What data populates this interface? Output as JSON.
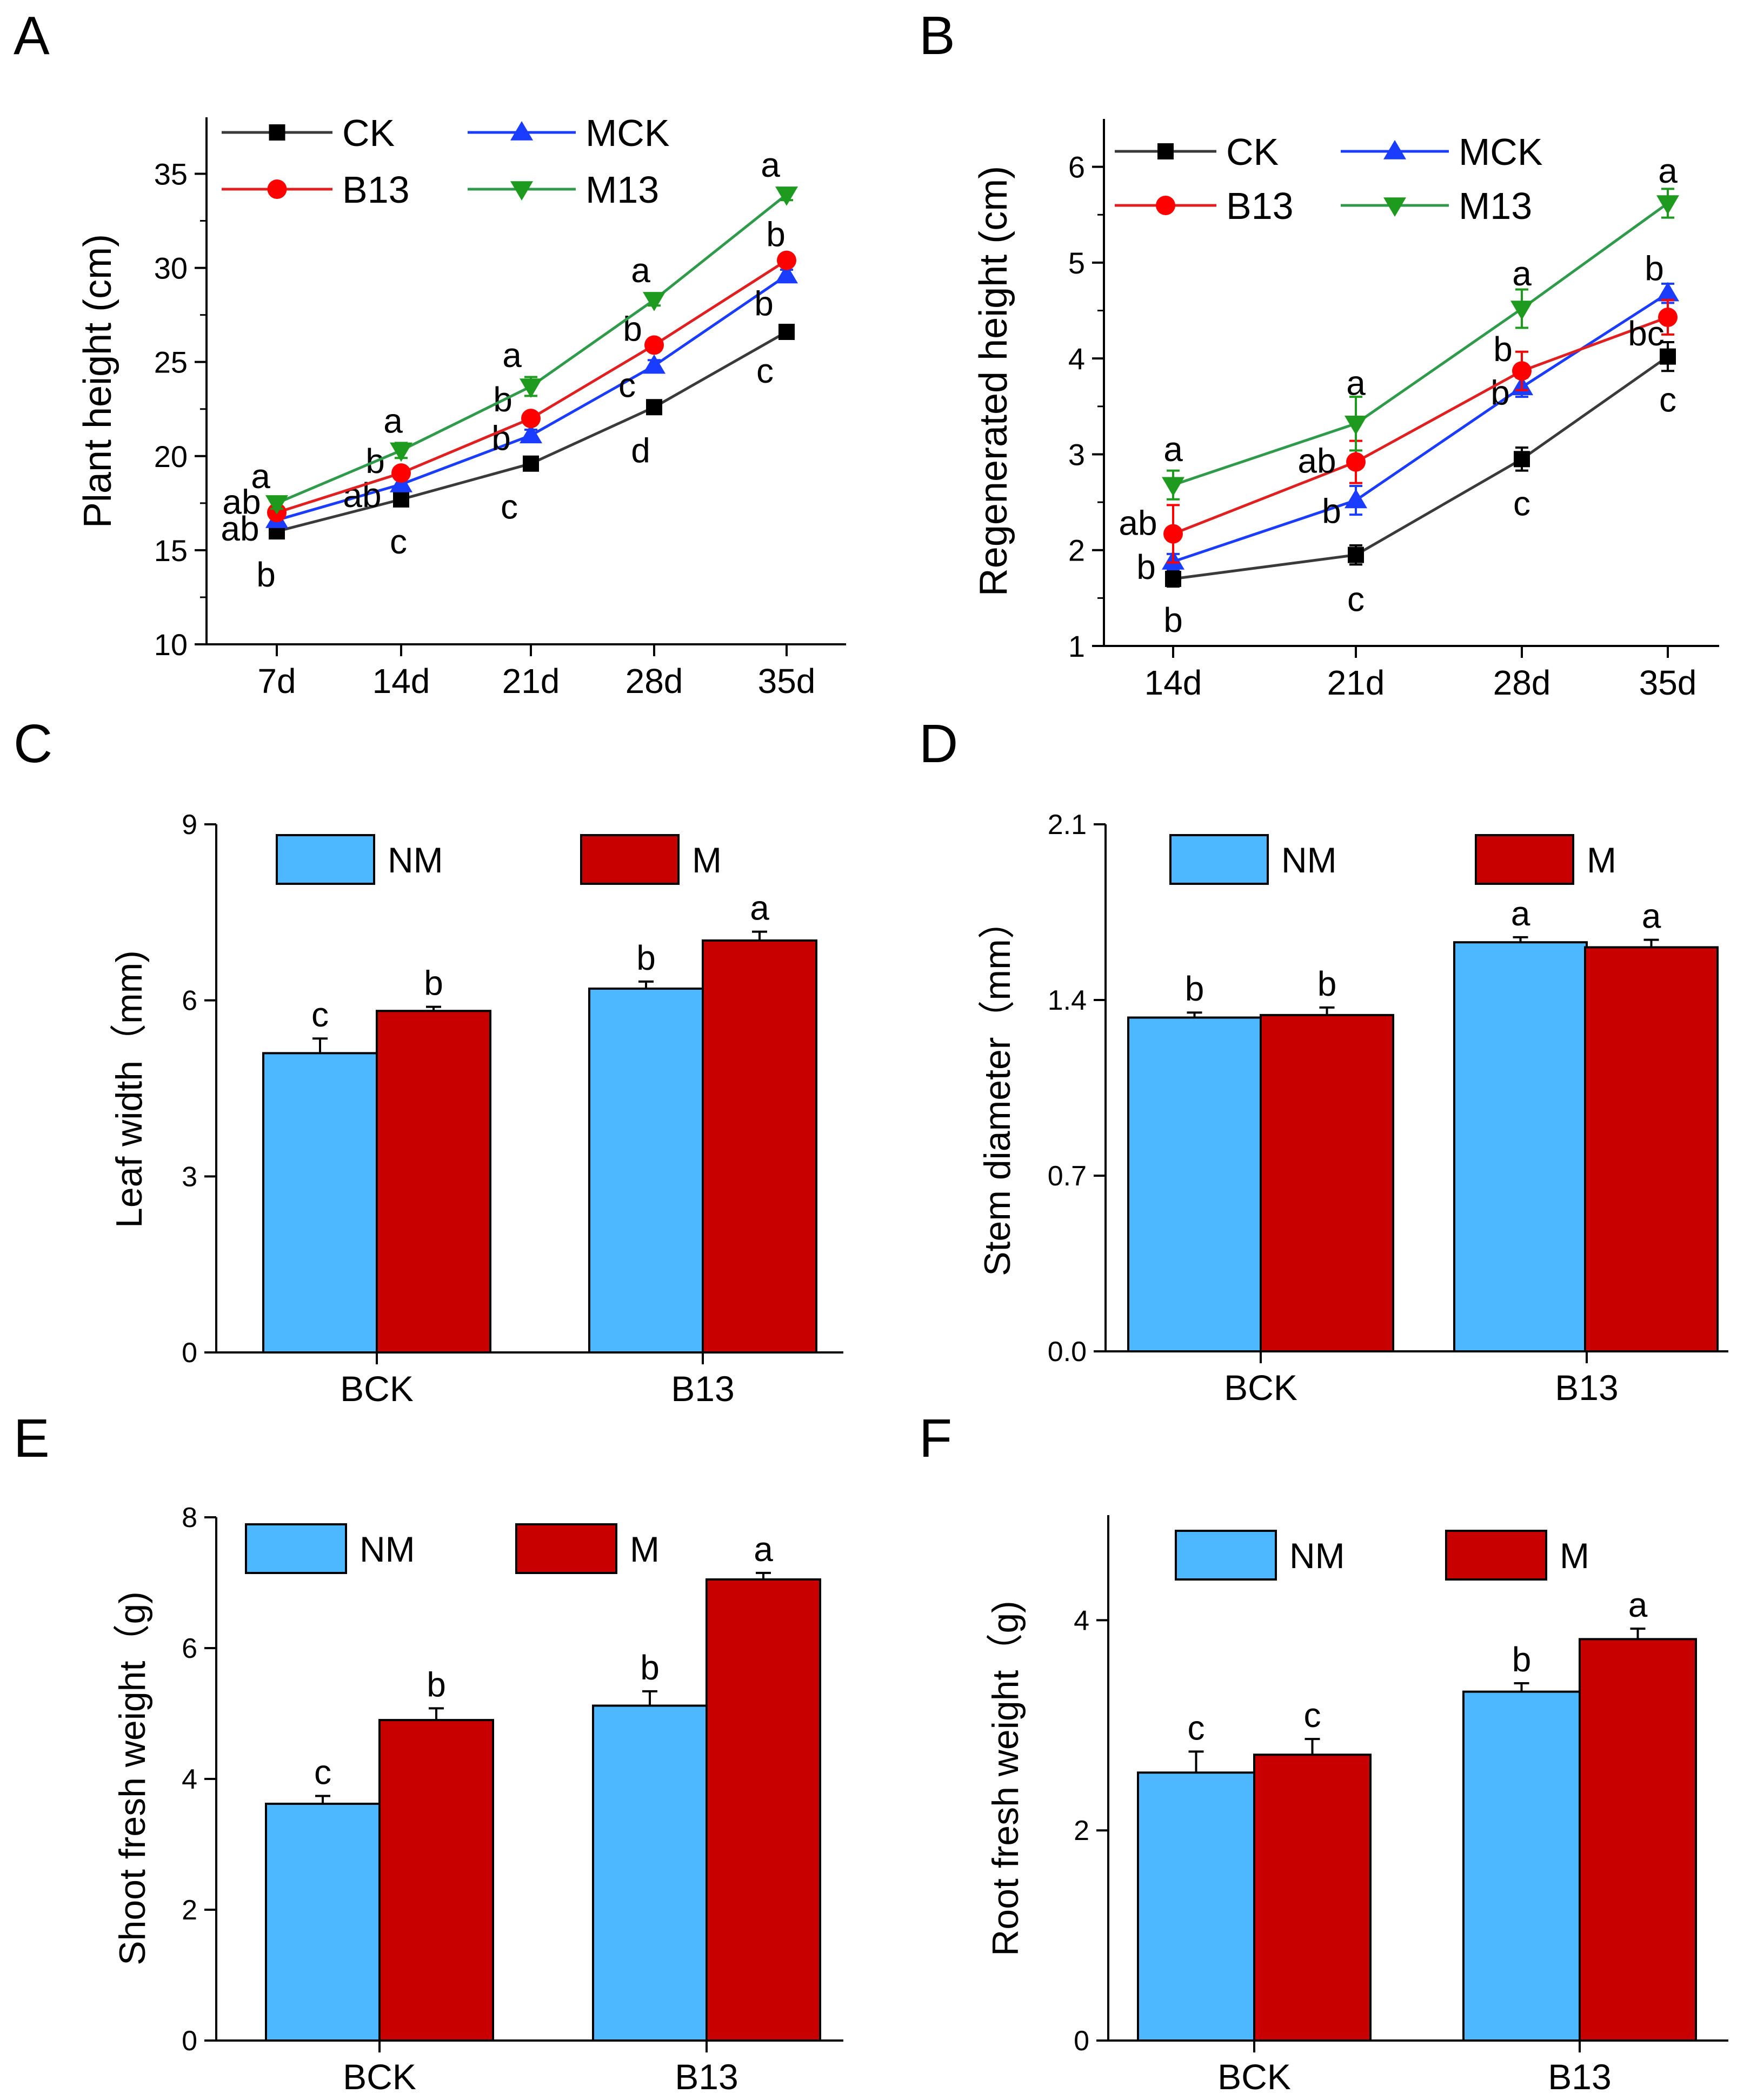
{
  "figure": {
    "panel_labels": [
      "A",
      "B",
      "C",
      "D",
      "E",
      "F"
    ]
  },
  "chart_data": [
    {
      "panel": "A",
      "type": "line",
      "title": "",
      "xlabel": "",
      "ylabel": "Plant height (cm)",
      "categories": [
        "7d",
        "14d",
        "21d",
        "28d",
        "35d"
      ],
      "ylim": [
        10,
        38
      ],
      "yticks": [
        10,
        15,
        20,
        25,
        30,
        35
      ],
      "legend_placement": "top-left",
      "series": [
        {
          "name": "CK",
          "color": "#000000",
          "line_color": "#3a3a3a",
          "marker": "square",
          "values": [
            16.0,
            17.7,
            19.6,
            22.6,
            26.6
          ],
          "errors": [
            0.3,
            0.3,
            0.3,
            0.3,
            0.3
          ],
          "letters": [
            "b",
            "c",
            "c",
            "d",
            "c"
          ]
        },
        {
          "name": "MCK",
          "color": "#1a3cff",
          "line_color": "#1a3cff",
          "marker": "triangle-up",
          "values": [
            16.6,
            18.5,
            21.1,
            24.8,
            29.6
          ],
          "errors": [
            0.3,
            0.3,
            0.3,
            0.3,
            0.3
          ],
          "letters": [
            "ab",
            "ab",
            "b",
            "c",
            "b"
          ]
        },
        {
          "name": "B13",
          "color": "#ff0000",
          "line_color": "#e02020",
          "marker": "circle",
          "values": [
            17.0,
            19.1,
            22.0,
            25.9,
            30.4
          ],
          "errors": [
            0.3,
            0.3,
            0.3,
            0.3,
            0.3
          ],
          "letters": [
            "ab",
            "b",
            "b",
            "b",
            "b"
          ]
        },
        {
          "name": "M13",
          "color": "#1e9a1e",
          "line_color": "#2f9a4a",
          "marker": "triangle-down",
          "values": [
            17.5,
            20.3,
            23.7,
            28.3,
            33.9
          ],
          "errors": [
            0.3,
            0.4,
            0.5,
            0.3,
            0.3
          ],
          "letters": [
            "a",
            "a",
            "a",
            "a",
            "a"
          ]
        }
      ]
    },
    {
      "panel": "B",
      "type": "line",
      "title": "",
      "xlabel": "",
      "ylabel": "Regenerated height (cm)",
      "categories": [
        "14d",
        "21d",
        "28d",
        "35d"
      ],
      "ylim": [
        1,
        6.5
      ],
      "yticks": [
        1,
        2,
        3,
        4,
        5,
        6
      ],
      "legend_placement": "top-left",
      "series": [
        {
          "name": "CK",
          "color": "#000000",
          "line_color": "#3a3a3a",
          "marker": "square",
          "values": [
            1.7,
            1.95,
            2.95,
            4.02
          ],
          "errors": [
            0.08,
            0.1,
            0.12,
            0.15
          ],
          "letters": [
            "b",
            "c",
            "c",
            "c"
          ]
        },
        {
          "name": "MCK",
          "color": "#1a3cff",
          "line_color": "#1a3cff",
          "marker": "triangle-up",
          "values": [
            1.88,
            2.52,
            3.7,
            4.68
          ],
          "errors": [
            0.08,
            0.15,
            0.1,
            0.1
          ],
          "letters": [
            "b",
            "b",
            "b",
            "b"
          ]
        },
        {
          "name": "B13",
          "color": "#ff0000",
          "line_color": "#e02020",
          "marker": "circle",
          "values": [
            2.17,
            2.92,
            3.87,
            4.43
          ],
          "errors": [
            0.3,
            0.22,
            0.2,
            0.18
          ],
          "letters": [
            "ab",
            "ab",
            "b",
            "bc"
          ]
        },
        {
          "name": "M13",
          "color": "#1e9a1e",
          "line_color": "#2f9a4a",
          "marker": "triangle-down",
          "values": [
            2.68,
            3.32,
            4.52,
            5.62
          ],
          "errors": [
            0.15,
            0.28,
            0.2,
            0.15
          ],
          "letters": [
            "a",
            "a",
            "a",
            "a"
          ]
        }
      ]
    },
    {
      "panel": "C",
      "type": "bar",
      "title": "",
      "xlabel": "",
      "ylabel": "Leaf width（mm)",
      "categories": [
        "BCK",
        "B13"
      ],
      "ylim": [
        0,
        9
      ],
      "yticks": [
        "0",
        "3",
        "6",
        "9"
      ],
      "yticks_values": [
        0,
        3,
        6,
        9
      ],
      "legend_placement": "top",
      "series": [
        {
          "name": "NM",
          "color": "#4db8ff",
          "values": [
            5.1,
            6.2
          ],
          "errors": [
            0.25,
            0.12
          ],
          "letters": [
            "c",
            "b"
          ]
        },
        {
          "name": "M",
          "color": "#c80000",
          "values": [
            5.82,
            7.02
          ],
          "errors": [
            0.07,
            0.15
          ],
          "letters": [
            "b",
            "a"
          ]
        }
      ]
    },
    {
      "panel": "D",
      "type": "bar",
      "title": "",
      "xlabel": "",
      "ylabel": "Stem diameter（mm）",
      "categories": [
        "BCK",
        "B13"
      ],
      "ylim": [
        0,
        2.1
      ],
      "yticks": [
        "0.0",
        "0.7",
        "1.4",
        "2.1"
      ],
      "yticks_values": [
        0,
        0.7,
        1.4,
        2.1
      ],
      "legend_placement": "top",
      "series": [
        {
          "name": "NM",
          "color": "#4db8ff",
          "values": [
            1.33,
            1.63
          ],
          "errors": [
            0.02,
            0.02
          ],
          "letters": [
            "b",
            "a"
          ]
        },
        {
          "name": "M",
          "color": "#c80000",
          "values": [
            1.34,
            1.61
          ],
          "errors": [
            0.03,
            0.03
          ],
          "letters": [
            "b",
            "a"
          ]
        }
      ]
    },
    {
      "panel": "E",
      "type": "bar",
      "title": "",
      "xlabel": "",
      "ylabel": "Shoot fresh weight（g)",
      "categories": [
        "BCK",
        "B13"
      ],
      "ylim": [
        0,
        8
      ],
      "yticks": [
        "0",
        "2",
        "4",
        "6",
        "8"
      ],
      "yticks_values": [
        0,
        2,
        4,
        6,
        8
      ],
      "legend_placement": "top",
      "series": [
        {
          "name": "NM",
          "color": "#4db8ff",
          "values": [
            3.62,
            5.12
          ],
          "errors": [
            0.12,
            0.22
          ],
          "letters": [
            "c",
            "b"
          ]
        },
        {
          "name": "M",
          "color": "#c80000",
          "values": [
            4.9,
            7.05
          ],
          "errors": [
            0.18,
            0.1
          ],
          "letters": [
            "b",
            "a"
          ]
        }
      ]
    },
    {
      "panel": "F",
      "type": "bar",
      "title": "",
      "xlabel": "",
      "ylabel": "Root fresh weight（g)",
      "categories": [
        "BCK",
        "B13"
      ],
      "ylim": [
        0,
        5
      ],
      "yticks": [
        "0",
        "2",
        "4"
      ],
      "yticks_values": [
        0,
        2,
        4
      ],
      "legend_placement": "top",
      "series": [
        {
          "name": "NM",
          "color": "#4db8ff",
          "values": [
            2.55,
            3.32
          ],
          "errors": [
            0.2,
            0.08
          ],
          "letters": [
            "c",
            "b"
          ]
        },
        {
          "name": "M",
          "color": "#c80000",
          "values": [
            2.72,
            3.82
          ],
          "errors": [
            0.15,
            0.1
          ],
          "letters": [
            "c",
            "a"
          ]
        }
      ]
    }
  ]
}
